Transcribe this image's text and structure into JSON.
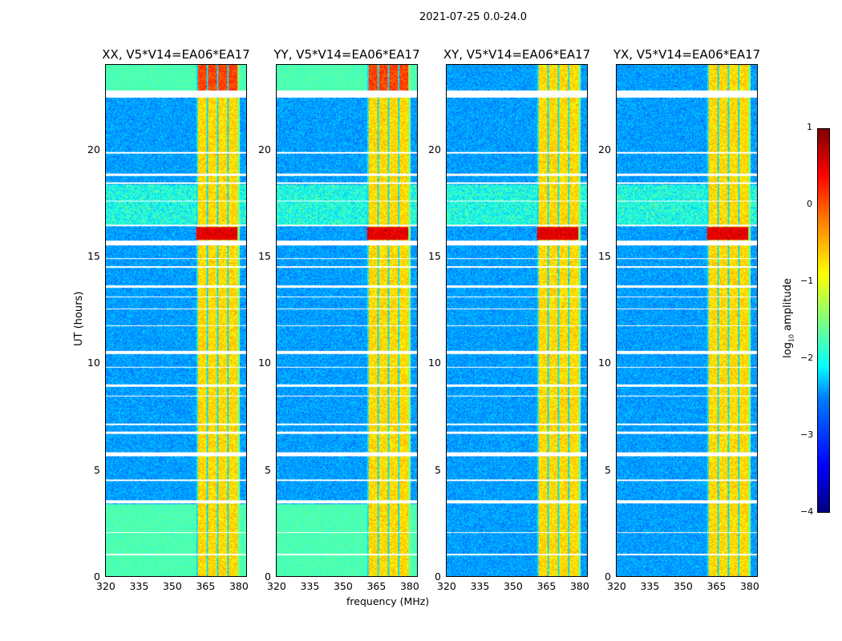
{
  "chart_data": {
    "type": "heatmap",
    "suptitle": "2021-07-25 0.0-24.0",
    "xlabel": "frequency (MHz)",
    "ylabel": "UT (hours)",
    "xlim": [
      320,
      384
    ],
    "ylim": [
      0,
      24
    ],
    "xticks": [
      "320",
      "335",
      "350",
      "365",
      "380"
    ],
    "yticks": [
      "0",
      "5",
      "10",
      "15",
      "20"
    ],
    "panels": [
      {
        "title": "XX, V5*V14=EA06*EA17",
        "pol": "XX"
      },
      {
        "title": "YY, V5*V14=EA06*EA17",
        "pol": "YY"
      },
      {
        "title": "XY, V5*V14=EA06*EA17",
        "pol": "XY"
      },
      {
        "title": "YX, V5*V14=EA06*EA17",
        "pol": "YX"
      }
    ],
    "rfi_band_mhz": [
      361,
      380
    ],
    "flagged_hours": [
      [
        22.5,
        22.8
      ],
      [
        19.85,
        19.95
      ],
      [
        18.8,
        18.9
      ],
      [
        18.45,
        18.5
      ],
      [
        17.6,
        17.65
      ],
      [
        16.45,
        16.5
      ],
      [
        15.55,
        15.75
      ],
      [
        14.9,
        14.95
      ],
      [
        14.5,
        14.55
      ],
      [
        13.55,
        13.65
      ],
      [
        13.1,
        13.15
      ],
      [
        12.55,
        12.6
      ],
      [
        11.75,
        11.8
      ],
      [
        10.45,
        10.6
      ],
      [
        9.8,
        9.85
      ],
      [
        8.9,
        9.0
      ],
      [
        8.45,
        8.5
      ],
      [
        7.1,
        7.2
      ],
      [
        6.7,
        6.82
      ],
      [
        5.65,
        5.82
      ],
      [
        4.5,
        4.55
      ],
      [
        3.45,
        3.6
      ],
      [
        2.05,
        2.1
      ],
      [
        1.0,
        1.05
      ]
    ],
    "colorbar": {
      "label": "log10 amplitude",
      "label_main": "log",
      "label_sub": "10",
      "label_rest": " amplitude",
      "range": [
        -4,
        1
      ],
      "ticks": [
        "1",
        "0",
        "−1",
        "−2",
        "−3",
        "−4"
      ],
      "colormap": "jet"
    }
  }
}
